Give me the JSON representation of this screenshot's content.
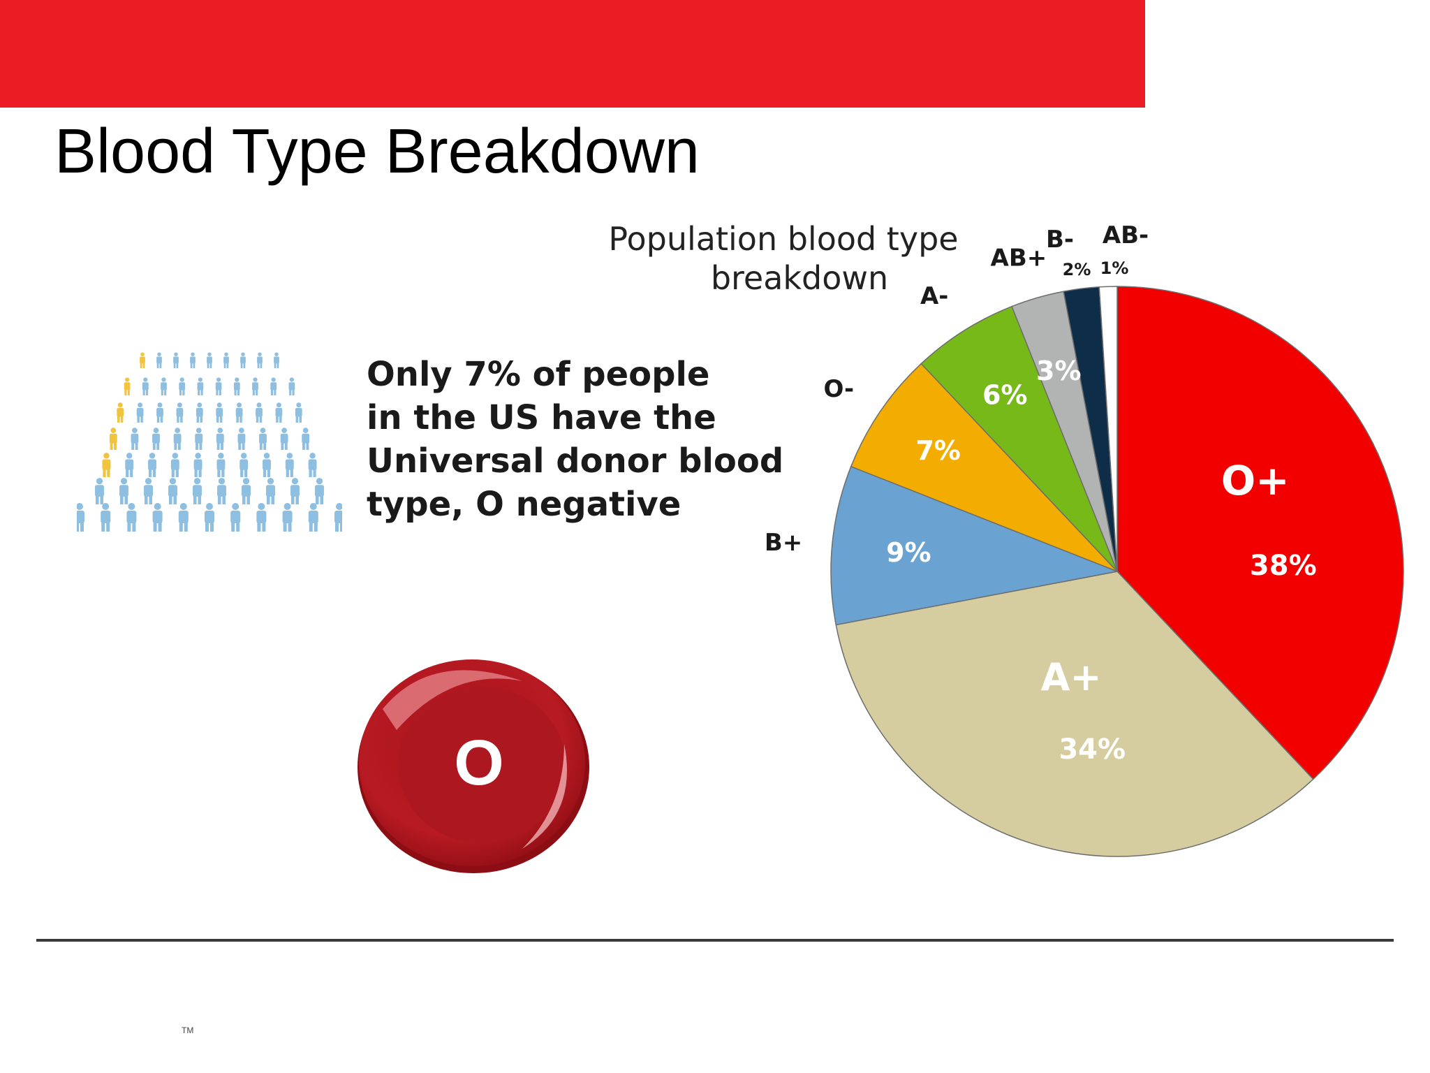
{
  "slide": {
    "title": "Blood Type Breakdown",
    "fact_lines": [
      "Only 7% of people",
      "in the US have the",
      "Universal donor blood",
      "type, O negative"
    ],
    "blood_cell_label": "O",
    "trademark": "TM"
  },
  "colors": {
    "top_bar": "#ec1c24",
    "people_blue": "#8ebfe0",
    "people_yellow": "#f2c43d",
    "blood_cell": "#b2161f"
  },
  "chart_data": {
    "type": "pie",
    "title": "Population blood type breakdown",
    "title_lines": [
      "Population blood type",
      "breakdown"
    ],
    "series": [
      {
        "name": "O+",
        "value": 38,
        "label": "38%",
        "color": "#f20000"
      },
      {
        "name": "A+",
        "value": 34,
        "label": "34%",
        "color": "#d5cc9f"
      },
      {
        "name": "B+",
        "value": 9,
        "label": "9%",
        "color": "#6aa3d1"
      },
      {
        "name": "O-",
        "value": 7,
        "label": "7%",
        "color": "#f2ad00"
      },
      {
        "name": "A-",
        "value": 6,
        "label": "6%",
        "color": "#78b91a"
      },
      {
        "name": "AB+",
        "value": 3,
        "label": "3%",
        "color": "#b2b4b3"
      },
      {
        "name": "B-",
        "value": 2,
        "label": "2%",
        "color": "#0e2d48"
      },
      {
        "name": "AB-",
        "value": 1,
        "label": "1%",
        "color": "#ffffff"
      }
    ]
  }
}
